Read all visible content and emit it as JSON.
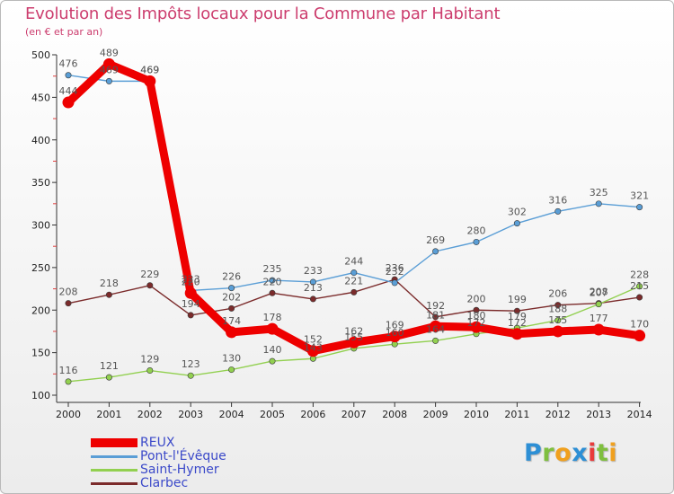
{
  "header": {
    "title": "Evolution des Impôts locaux pour la Commune par Habitant",
    "subtitle": "(en € et par an)"
  },
  "chart_data": {
    "type": "line",
    "title": "Evolution des Impôts locaux pour la Commune par Habitant",
    "subtitle": "(en € et par an)",
    "x": [
      "2000",
      "2001",
      "2002",
      "2003",
      "2004",
      "2005",
      "2006",
      "2007",
      "2008",
      "2009",
      "2010",
      "2011",
      "2012",
      "2013",
      "2014"
    ],
    "ylim": [
      100,
      500
    ],
    "yticks": [
      100,
      150,
      200,
      250,
      300,
      350,
      400,
      450,
      500
    ],
    "grid": false,
    "legend_position": "bottom-left",
    "series": [
      {
        "name": "REUX",
        "color": "#ee0000",
        "values": [
          444,
          489,
          469,
          220,
          174,
          178,
          152,
          162,
          169,
          181,
          180,
          172,
          175,
          177,
          170
        ]
      },
      {
        "name": "Pont-l'Évêque",
        "color": "#5a9ed6",
        "values": [
          476,
          469,
          469,
          223,
          226,
          235,
          233,
          244,
          232,
          269,
          280,
          302,
          316,
          325,
          321
        ]
      },
      {
        "name": "Saint-Hymer",
        "color": "#92d050",
        "values": [
          116,
          121,
          129,
          123,
          130,
          140,
          143,
          155,
          160,
          164,
          172,
          179,
          188,
          207,
          228
        ]
      },
      {
        "name": "Clarbec",
        "color": "#7b2b2b",
        "values": [
          208,
          218,
          229,
          194,
          202,
          220,
          213,
          221,
          236,
          192,
          200,
          199,
          206,
          208,
          215
        ]
      }
    ]
  },
  "legend": {
    "items": [
      {
        "label": "REUX"
      },
      {
        "label": "Pont-l'Évêque"
      },
      {
        "label": "Saint-Hymer"
      },
      {
        "label": "Clarbec"
      }
    ]
  },
  "logo": {
    "letters": [
      "P",
      "r",
      "o",
      "x",
      "i",
      "t",
      "i"
    ],
    "colors": [
      "#2d8fd5",
      "#7fbf3f",
      "#f0a01e",
      "#2d8fd5",
      "#e83b3b",
      "#7fbf3f",
      "#f0a01e"
    ]
  }
}
